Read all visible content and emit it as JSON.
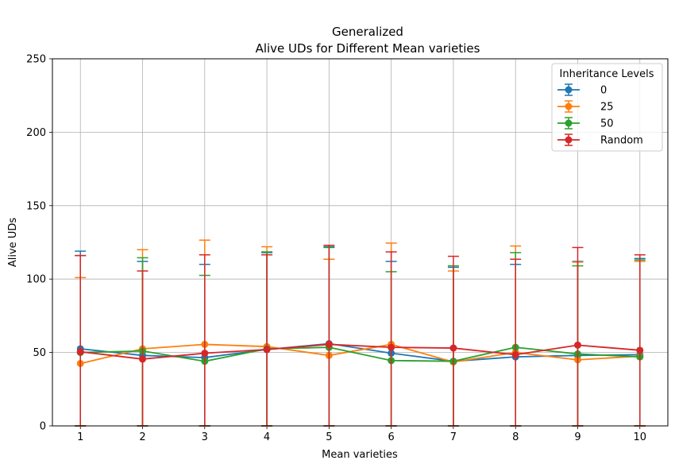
{
  "chart_data": {
    "type": "line",
    "title": "Generalized",
    "subtitle": "Alive UDs for Different Mean varieties",
    "xlabel": "Mean varieties",
    "ylabel": "Alive UDs",
    "x": [
      1,
      2,
      3,
      4,
      5,
      6,
      7,
      8,
      9,
      10
    ],
    "xticks": [
      "1",
      "2",
      "3",
      "4",
      "5",
      "6",
      "7",
      "8",
      "9",
      "10"
    ],
    "ylim": [
      0,
      250
    ],
    "yticks": [
      "0",
      "50",
      "100",
      "150",
      "200",
      "250"
    ],
    "grid": true,
    "legend_title": "Inheritance Levels",
    "legend_position": "top-right",
    "series": [
      {
        "name": "0",
        "color": "#1f77b4",
        "values": [
          52.5,
          48,
          46.5,
          52,
          56,
          49.5,
          44,
          47,
          48,
          48.5
        ],
        "err_upper": [
          119,
          112,
          110,
          118,
          122,
          112,
          108,
          110,
          112,
          114
        ],
        "err_lower": [
          0,
          0,
          0,
          0,
          0,
          0,
          0,
          0,
          0,
          0
        ]
      },
      {
        "name": "25",
        "color": "#ff7f0e",
        "values": [
          42.5,
          52.5,
          55.5,
          54,
          48,
          55.5,
          43.5,
          50,
          45,
          47.5
        ],
        "err_upper": [
          101,
          120,
          126.5,
          122,
          113.5,
          124.5,
          105.5,
          122.5,
          111.5,
          112
        ],
        "err_lower": [
          0,
          0,
          0,
          0,
          0,
          0,
          0,
          0,
          0,
          0
        ]
      },
      {
        "name": "50",
        "color": "#2ca02c",
        "values": [
          50,
          51,
          44,
          52.5,
          53.5,
          44.5,
          44,
          53.5,
          49,
          47
        ],
        "err_upper": [
          116,
          114.5,
          102.5,
          118.5,
          121.5,
          105,
          109,
          118,
          109,
          113
        ],
        "err_lower": [
          0,
          0,
          0,
          0,
          0,
          0,
          0,
          0,
          0,
          0
        ]
      },
      {
        "name": "Random",
        "color": "#d62728",
        "values": [
          50.5,
          45.5,
          49.5,
          52,
          55.5,
          53.5,
          53,
          48.5,
          55,
          51.5
        ],
        "err_upper": [
          116,
          105.5,
          116.5,
          116.5,
          123,
          118.5,
          115.5,
          113.5,
          121.5,
          116.5
        ],
        "err_lower": [
          0,
          0,
          0,
          0,
          0,
          0,
          0,
          0,
          0,
          0
        ]
      }
    ]
  }
}
